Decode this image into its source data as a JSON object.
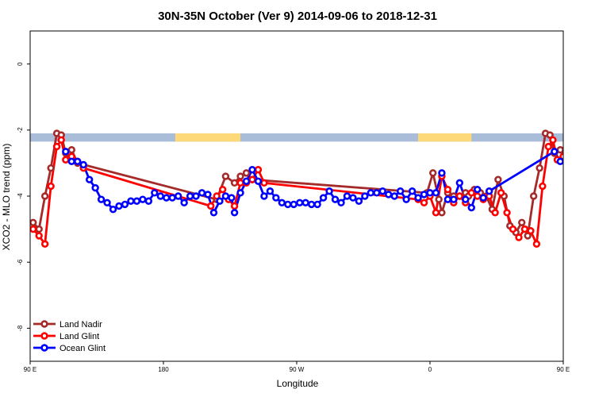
{
  "chart_data": {
    "type": "line",
    "title": "30N-35N October (Ver 9)   2014-09-06 to 2018-12-31",
    "xlabel": "Longitude",
    "ylabel": "XCO2 - MLO trend (ppm)",
    "xlim": [
      90,
      450
    ],
    "ylim": [
      -9,
      1
    ],
    "xticks": [
      {
        "value": 90,
        "label": "90 E"
      },
      {
        "value": 180,
        "label": "180"
      },
      {
        "value": 270,
        "label": "90 W"
      },
      {
        "value": 360,
        "label": "0"
      },
      {
        "value": 450,
        "label": "90 E"
      },
      {
        "value": 540,
        "label": "180"
      }
    ],
    "yticks": [
      {
        "value": 0,
        "label": "0"
      },
      {
        "value": -2,
        "label": "-2"
      },
      {
        "value": -4,
        "label": "-4"
      },
      {
        "value": -6,
        "label": "-6"
      },
      {
        "value": -8,
        "label": "-8"
      }
    ],
    "land_mask_band": {
      "y_top": -2.1,
      "y_bottom": -2.35,
      "land_color": "#FDD97A",
      "ocean_color": "#A9BDD9"
    },
    "land_ranges": [
      [
        188,
        232
      ],
      [
        352,
        388
      ],
      [
        498,
        512
      ]
    ],
    "legend": {
      "position": "bottom-left"
    },
    "series": [
      {
        "name": "Land Nadir",
        "color": "#A52A2A",
        "points": [
          [
            92,
            -4.8
          ],
          [
            96,
            -5.0
          ],
          [
            100,
            -4.0
          ],
          [
            104,
            -3.15
          ],
          [
            108,
            -2.1
          ],
          [
            111,
            -2.15
          ],
          [
            114,
            -2.7
          ],
          [
            118,
            -2.6
          ],
          [
            122,
            -3.0
          ],
          [
            216,
            -4.1
          ],
          [
            222,
            -3.4
          ],
          [
            228,
            -3.6
          ],
          [
            232,
            -3.4
          ],
          [
            236,
            -3.3
          ],
          [
            240,
            -3.5
          ],
          [
            358,
            -3.9
          ],
          [
            362,
            -3.3
          ],
          [
            366,
            -4.1
          ],
          [
            368,
            -4.5
          ],
          [
            372,
            -3.9
          ],
          [
            376,
            -4.0
          ],
          [
            380,
            -4.0
          ],
          [
            384,
            -3.9
          ],
          [
            386,
            -4.0
          ],
          [
            390,
            -3.8
          ],
          [
            394,
            -3.9
          ],
          [
            398,
            -4.0
          ],
          [
            402,
            -4.4
          ],
          [
            406,
            -3.5
          ],
          [
            410,
            -4.0
          ],
          [
            414,
            -4.9
          ],
          [
            418,
            -5.1
          ],
          [
            422,
            -4.8
          ],
          [
            426,
            -5.2
          ],
          [
            430,
            -4.0
          ],
          [
            434,
            -3.15
          ],
          [
            438,
            -2.1
          ],
          [
            441,
            -2.15
          ],
          [
            444,
            -2.7
          ],
          [
            448,
            -2.6
          ],
          [
            452,
            -3.0
          ]
        ]
      },
      {
        "name": "Land Glint",
        "color": "#FF0000",
        "points": [
          [
            92,
            -5.0
          ],
          [
            96,
            -5.2
          ],
          [
            100,
            -5.45
          ],
          [
            104,
            -3.7
          ],
          [
            108,
            -2.5
          ],
          [
            111,
            -2.3
          ],
          [
            114,
            -2.9
          ],
          [
            118,
            -2.8
          ],
          [
            122,
            -2.95
          ],
          [
            126,
            -3.15
          ],
          [
            212,
            -4.3
          ],
          [
            216,
            -4.0
          ],
          [
            220,
            -3.8
          ],
          [
            224,
            -4.1
          ],
          [
            228,
            -4.3
          ],
          [
            232,
            -3.6
          ],
          [
            236,
            -3.6
          ],
          [
            240,
            -3.5
          ],
          [
            244,
            -3.2
          ],
          [
            248,
            -3.6
          ],
          [
            352,
            -4.1
          ],
          [
            356,
            -4.2
          ],
          [
            360,
            -4.0
          ],
          [
            364,
            -4.5
          ],
          [
            368,
            -3.4
          ],
          [
            372,
            -3.8
          ],
          [
            376,
            -4.2
          ],
          [
            380,
            -4.0
          ],
          [
            384,
            -4.2
          ],
          [
            388,
            -3.9
          ],
          [
            392,
            -4.0
          ],
          [
            396,
            -4.1
          ],
          [
            400,
            -4.0
          ],
          [
            404,
            -4.5
          ],
          [
            408,
            -3.9
          ],
          [
            412,
            -4.5
          ],
          [
            416,
            -5.0
          ],
          [
            420,
            -5.25
          ],
          [
            424,
            -5.0
          ],
          [
            428,
            -5.05
          ],
          [
            432,
            -5.45
          ],
          [
            436,
            -3.7
          ],
          [
            440,
            -2.5
          ],
          [
            443,
            -2.3
          ],
          [
            446,
            -2.9
          ],
          [
            450,
            -2.8
          ],
          [
            454,
            -2.95
          ],
          [
            458,
            -3.15
          ]
        ]
      },
      {
        "name": "Ocean Glint",
        "color": "#0000FF",
        "points": [
          [
            114,
            -2.65
          ],
          [
            118,
            -2.95
          ],
          [
            122,
            -2.95
          ],
          [
            126,
            -3.05
          ],
          [
            130,
            -3.5
          ],
          [
            134,
            -3.75
          ],
          [
            138,
            -4.1
          ],
          [
            142,
            -4.2
          ],
          [
            146,
            -4.4
          ],
          [
            150,
            -4.3
          ],
          [
            154,
            -4.25
          ],
          [
            158,
            -4.15
          ],
          [
            162,
            -4.15
          ],
          [
            166,
            -4.1
          ],
          [
            170,
            -4.15
          ],
          [
            174,
            -3.9
          ],
          [
            178,
            -4.0
          ],
          [
            182,
            -4.05
          ],
          [
            186,
            -4.05
          ],
          [
            190,
            -4.0
          ],
          [
            194,
            -4.2
          ],
          [
            198,
            -4.0
          ],
          [
            202,
            -4.0
          ],
          [
            206,
            -3.9
          ],
          [
            210,
            -3.95
          ],
          [
            214,
            -4.5
          ],
          [
            218,
            -4.15
          ],
          [
            222,
            -4.0
          ],
          [
            226,
            -4.05
          ],
          [
            228,
            -4.5
          ],
          [
            232,
            -3.9
          ],
          [
            236,
            -3.55
          ],
          [
            240,
            -3.2
          ],
          [
            244,
            -3.55
          ],
          [
            248,
            -4.0
          ],
          [
            252,
            -3.85
          ],
          [
            256,
            -4.05
          ],
          [
            260,
            -4.2
          ],
          [
            264,
            -4.25
          ],
          [
            268,
            -4.25
          ],
          [
            272,
            -4.2
          ],
          [
            276,
            -4.2
          ],
          [
            280,
            -4.25
          ],
          [
            284,
            -4.25
          ],
          [
            288,
            -4.05
          ],
          [
            292,
            -3.85
          ],
          [
            296,
            -4.1
          ],
          [
            300,
            -4.2
          ],
          [
            304,
            -4.0
          ],
          [
            308,
            -4.05
          ],
          [
            312,
            -4.15
          ],
          [
            316,
            -4.0
          ],
          [
            320,
            -3.9
          ],
          [
            324,
            -3.9
          ],
          [
            328,
            -3.85
          ],
          [
            332,
            -3.95
          ],
          [
            336,
            -4.0
          ],
          [
            340,
            -3.85
          ],
          [
            344,
            -4.1
          ],
          [
            348,
            -3.85
          ],
          [
            352,
            -4.05
          ],
          [
            356,
            -3.95
          ],
          [
            360,
            -3.9
          ],
          [
            364,
            -3.9
          ],
          [
            368,
            -3.3
          ],
          [
            372,
            -4.1
          ],
          [
            376,
            -4.1
          ],
          [
            380,
            -3.6
          ],
          [
            384,
            -4.1
          ],
          [
            388,
            -4.35
          ],
          [
            392,
            -3.8
          ],
          [
            396,
            -4.05
          ],
          [
            400,
            -3.85
          ],
          [
            444,
            -2.65
          ],
          [
            448,
            -2.95
          ],
          [
            452,
            -2.95
          ],
          [
            456,
            -3.05
          ],
          [
            460,
            -3.5
          ],
          [
            464,
            -3.75
          ],
          [
            468,
            -4.05
          ],
          [
            472,
            -4.25
          ],
          [
            476,
            -4.4
          ],
          [
            480,
            -4.3
          ],
          [
            484,
            -4.25
          ],
          [
            488,
            -4.15
          ],
          [
            492,
            -4.15
          ]
        ]
      }
    ]
  }
}
